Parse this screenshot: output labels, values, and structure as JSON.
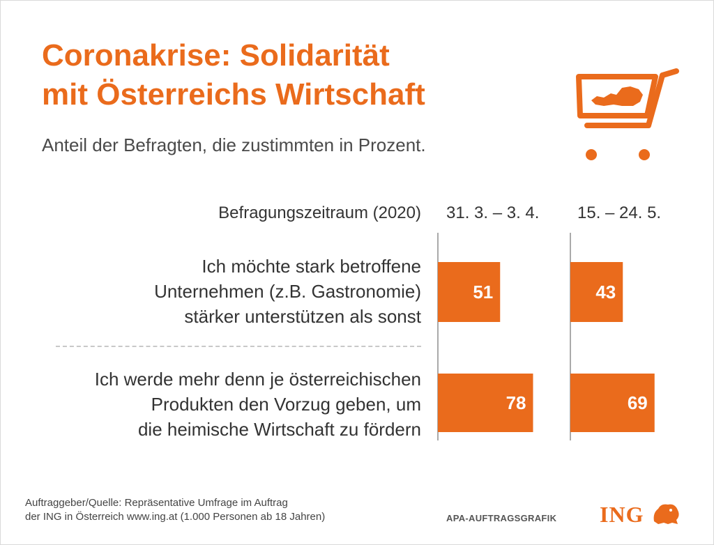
{
  "title_line1": "Coronakrise: Solidarität",
  "title_line2": "mit Österreichs Wirtschaft",
  "subtitle": "Anteil der Befragten, die zustimmten in Prozent.",
  "period_label": "Befragungszeitraum (2020)",
  "source_line1": "Auftraggeber/Quelle: Repräsentative Umfrage im Auftrag",
  "source_line2": "der ING in Österreich www.ing.at (1.000 Personen ab 18 Jahren)",
  "credit": "APA-AUFTRAGSGRAFIK",
  "logo_text": "ING",
  "icons": {
    "cart": "shopping-cart-icon",
    "logo_lion": "lion-icon"
  },
  "colors": {
    "accent": "#ea6b1c",
    "text": "#333333",
    "divider": "#c8c8c8"
  },
  "chart_data": {
    "type": "bar",
    "orientation": "horizontal",
    "unit": "%",
    "columns": [
      "31. 3. – 3. 4.",
      "15. – 24. 5."
    ],
    "rows": [
      {
        "label_lines": [
          "Ich möchte stark betroffene",
          "Unternehmen (z.B. Gastronomie)",
          "stärker unterstützen als sonst"
        ],
        "values": [
          51,
          43
        ]
      },
      {
        "label_lines": [
          "Ich werde mehr denn je österreichischen",
          "Produkten den Vorzug geben, um",
          "die heimische Wirtschaft zu fördern"
        ],
        "values": [
          78,
          69
        ]
      }
    ],
    "xlim": [
      0,
      100
    ]
  }
}
